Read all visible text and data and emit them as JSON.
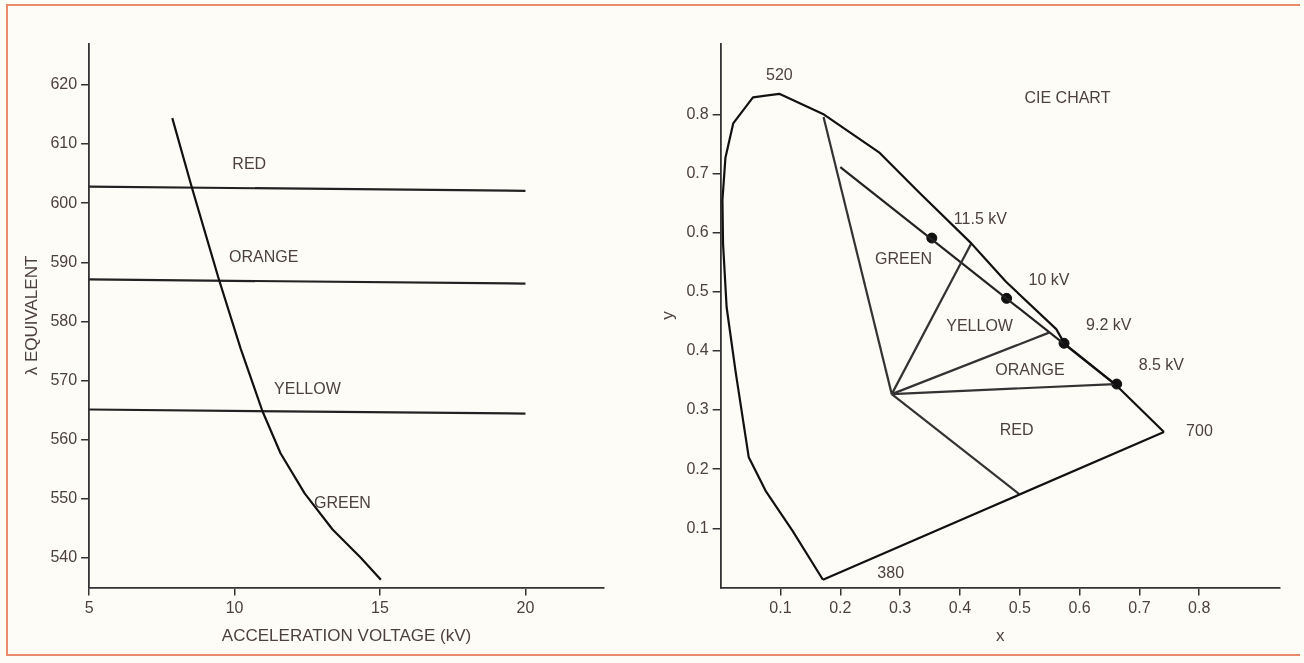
{
  "chart_data": [
    {
      "type": "line",
      "xlabel": "ACCELERATION VOLTAGE (kV)",
      "ylabel": "λ EQUIVALENT",
      "xlim": [
        5,
        22.7
      ],
      "ylim": [
        535,
        627
      ],
      "xticks": [
        5,
        10,
        15,
        20
      ],
      "yticks": [
        540,
        550,
        560,
        570,
        580,
        590,
        600,
        610,
        620
      ],
      "grid": false,
      "legend": false,
      "series": [
        {
          "color": "#111111",
          "x": [
            7.86,
            8.53,
            9.45,
            10.21,
            10.96,
            11.58,
            12.41,
            13.37,
            14.34,
            15.03
          ],
          "values": [
            614.4,
            602.7,
            587.3,
            575.4,
            564.8,
            557.7,
            550.9,
            544.8,
            540,
            536.3
          ]
        },
        {
          "color": "#222222",
          "x": [
            5,
            20
          ],
          "values": [
            602.8,
            602.1
          ]
        },
        {
          "color": "#222222",
          "x": [
            5,
            20
          ],
          "values": [
            587.1,
            586.4
          ]
        },
        {
          "color": "#222222",
          "x": [
            5,
            20
          ],
          "values": [
            565.1,
            564.4
          ]
        }
      ],
      "annotations": [
        "RED",
        "ORANGE",
        "YELLOW",
        "GREEN"
      ]
    },
    {
      "type": "line",
      "title": "CIE CHART",
      "xlabel": "x",
      "ylabel": "y",
      "xlim": [
        0,
        0.935
      ],
      "ylim": [
        0,
        0.92
      ],
      "xticks": [
        0.1,
        0.2,
        0.3,
        0.4,
        0.5,
        0.6,
        0.7,
        0.8
      ],
      "yticks": [
        0.1,
        0.2,
        0.3,
        0.4,
        0.5,
        0.6,
        0.7,
        0.8
      ],
      "grid": false,
      "legend": false,
      "series": [
        {
          "color": "#111111",
          "x": [
            0.171,
            0.12,
            0.076,
            0.047,
            0.025,
            0.01,
            0.004,
            0.003,
            0.008,
            0.021,
            0.054,
            0.098,
            0.171,
            0.266,
            0.331,
            0.419,
            0.477,
            0.561,
            0.575,
            0.659,
            0.741
          ],
          "values": [
            0.013,
            0.096,
            0.162,
            0.22,
            0.365,
            0.474,
            0.582,
            0.655,
            0.727,
            0.785,
            0.829,
            0.835,
            0.801,
            0.735,
            0.669,
            0.582,
            0.517,
            0.437,
            0.412,
            0.344,
            0.263
          ]
        },
        {
          "color": "#111111",
          "x": [
            0.171,
            0.741
          ],
          "values": [
            0.013,
            0.263
          ]
        },
        {
          "color": "#333333",
          "x": [
            0.286,
            0.172
          ],
          "values": [
            0.327,
            0.796
          ]
        },
        {
          "color": "#333333",
          "x": [
            0.286,
            0.419
          ],
          "values": [
            0.327,
            0.582
          ]
        },
        {
          "color": "#333333",
          "x": [
            0.286,
            0.549
          ],
          "values": [
            0.327,
            0.431
          ]
        },
        {
          "color": "#333333",
          "x": [
            0.286,
            0.659
          ],
          "values": [
            0.327,
            0.344
          ]
        },
        {
          "color": "#333333",
          "x": [
            0.286,
            0.499
          ],
          "values": [
            0.327,
            0.158
          ]
        },
        {
          "color": "#222222",
          "x": [
            0.2,
            0.659
          ],
          "values": [
            0.711,
            0.344
          ]
        },
        {
          "type": "scatter",
          "color": "#111111",
          "marker": "circle",
          "x": [
            0.353,
            0.478,
            0.574,
            0.662
          ],
          "values": [
            0.591,
            0.489,
            0.413,
            0.344
          ]
        }
      ],
      "annotations": [
        "520",
        "700",
        "380",
        "GREEN",
        "YELLOW",
        "ORANGE",
        "RED",
        {
          "text": "11.5 kV",
          "x": 0.353,
          "y": 0.591
        },
        {
          "text": "10 kV",
          "x": 0.478,
          "y": 0.489
        },
        {
          "text": "9.2 kV",
          "x": 0.574,
          "y": 0.413
        },
        {
          "text": "8.5 kV",
          "x": 0.662,
          "y": 0.344
        }
      ]
    }
  ]
}
